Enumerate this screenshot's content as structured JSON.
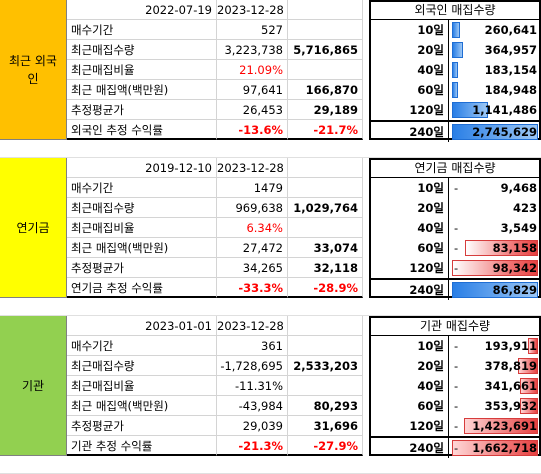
{
  "blocks": [
    {
      "category": "최근 외국\n인",
      "cat_color": "#ffc000",
      "start_date": "2022-07-19",
      "end_date": "2023-12-28",
      "rows": [
        {
          "label": "매수기간",
          "v1": "527",
          "v1_red": false,
          "v2": ""
        },
        {
          "label": "최근매집수량",
          "v1": "3,223,738",
          "v1_red": false,
          "v2": "5,716,865"
        },
        {
          "label": "최근매집비율",
          "v1": "21.09%",
          "v1_red": true,
          "v2": ""
        },
        {
          "label": "최근 매집액(백만원)",
          "v1": "97,641",
          "v1_red": false,
          "v2": "166,870"
        },
        {
          "label": "추정평균가",
          "v1": "26,453",
          "v1_red": false,
          "v2": "29,189"
        },
        {
          "label": "외국인 추정 수익률",
          "v1": "-13.6%",
          "v1_red": true,
          "v2": "-21.7%"
        }
      ],
      "right_title": "외국인 매집수량",
      "right_rows": [
        {
          "day": "10일",
          "value": "260,641",
          "bar_fraction": 0.095,
          "bar_color": "blue",
          "dash": false
        },
        {
          "day": "20일",
          "value": "364,957",
          "bar_fraction": 0.133,
          "bar_color": "blue",
          "dash": false
        },
        {
          "day": "40일",
          "value": "183,154",
          "bar_fraction": 0.067,
          "bar_color": "blue",
          "dash": false
        },
        {
          "day": "60일",
          "value": "184,948",
          "bar_fraction": 0.067,
          "bar_color": "blue",
          "dash": false
        },
        {
          "day": "120일",
          "value": "1,141,486",
          "bar_fraction": 0.416,
          "bar_color": "blue",
          "dash": false
        },
        {
          "day": "240일",
          "value": "2,745,629",
          "bar_fraction": 1.0,
          "bar_color": "blue",
          "dash": false
        }
      ]
    },
    {
      "category": "연기금",
      "cat_color": "#ffff00",
      "start_date": "2019-12-10",
      "end_date": "2023-12-28",
      "rows": [
        {
          "label": "매수기간",
          "v1": "1479",
          "v1_red": false,
          "v2": ""
        },
        {
          "label": "최근매집수량",
          "v1": "969,638",
          "v1_red": false,
          "v2": "1,029,764"
        },
        {
          "label": "최근매집비율",
          "v1": "6.34%",
          "v1_red": true,
          "v2": ""
        },
        {
          "label": "최근 매집액(백만원)",
          "v1": "27,472",
          "v1_red": false,
          "v2": "33,074"
        },
        {
          "label": "추정평균가",
          "v1": "34,265",
          "v1_red": false,
          "v2": "32,118"
        },
        {
          "label": "연기금 추정 수익률",
          "v1": "-33.3%",
          "v1_red": true,
          "v2": "-28.9%"
        }
      ],
      "right_title": "연기금 매집수량",
      "right_rows": [
        {
          "day": "10일",
          "value": "9,468",
          "bar_fraction": 0.0,
          "bar_color": "red",
          "dash": true
        },
        {
          "day": "20일",
          "value": "423",
          "bar_fraction": 0.0,
          "bar_color": "blue",
          "dash": false
        },
        {
          "day": "40일",
          "value": "3,549",
          "bar_fraction": 0.0,
          "bar_color": "red",
          "dash": true
        },
        {
          "day": "60일",
          "value": "83,158",
          "bar_fraction": 0.85,
          "bar_color": "red",
          "dash": true
        },
        {
          "day": "120일",
          "value": "98,342",
          "bar_fraction": 1.0,
          "bar_color": "red",
          "dash": true
        },
        {
          "day": "240일",
          "value": "86,829",
          "bar_fraction": 1.0,
          "bar_color": "blue",
          "dash": false
        }
      ]
    },
    {
      "category": "기관",
      "cat_color": "#92d050",
      "start_date": "2023-01-01",
      "end_date": "2023-12-28",
      "rows": [
        {
          "label": "매수기간",
          "v1": "361",
          "v1_red": false,
          "v2": ""
        },
        {
          "label": "최근매집수량",
          "v1": "-1,728,695",
          "v1_red": false,
          "v2": "2,533,203"
        },
        {
          "label": "최근매집비율",
          "v1": "-11.31%",
          "v1_red": false,
          "v2": ""
        },
        {
          "label": "최근 매집액(백만원)",
          "v1": "-43,984",
          "v1_red": false,
          "v2": "80,293"
        },
        {
          "label": "추정평균가",
          "v1": "29,039",
          "v1_red": false,
          "v2": "31,696"
        },
        {
          "label": "기관 추정 수익률",
          "v1": "-21.3%",
          "v1_red": true,
          "v2": "-27.9%"
        }
      ],
      "right_title": "기관 매집수량",
      "right_rows": [
        {
          "day": "10일",
          "value": "193,911",
          "bar_fraction": 0.117,
          "bar_color": "red-r",
          "dash": true
        },
        {
          "day": "20일",
          "value": "378,819",
          "bar_fraction": 0.228,
          "bar_color": "red-r",
          "dash": true
        },
        {
          "day": "40일",
          "value": "341,661",
          "bar_fraction": 0.206,
          "bar_color": "red-r",
          "dash": true
        },
        {
          "day": "60일",
          "value": "353,932",
          "bar_fraction": 0.213,
          "bar_color": "red-r",
          "dash": true
        },
        {
          "day": "120일",
          "value": "1,423,691",
          "bar_fraction": 0.856,
          "bar_color": "red-r",
          "dash": true
        },
        {
          "day": "240일",
          "value": "1,662,718",
          "bar_fraction": 1.0,
          "bar_color": "red-r",
          "dash": true
        }
      ]
    }
  ]
}
